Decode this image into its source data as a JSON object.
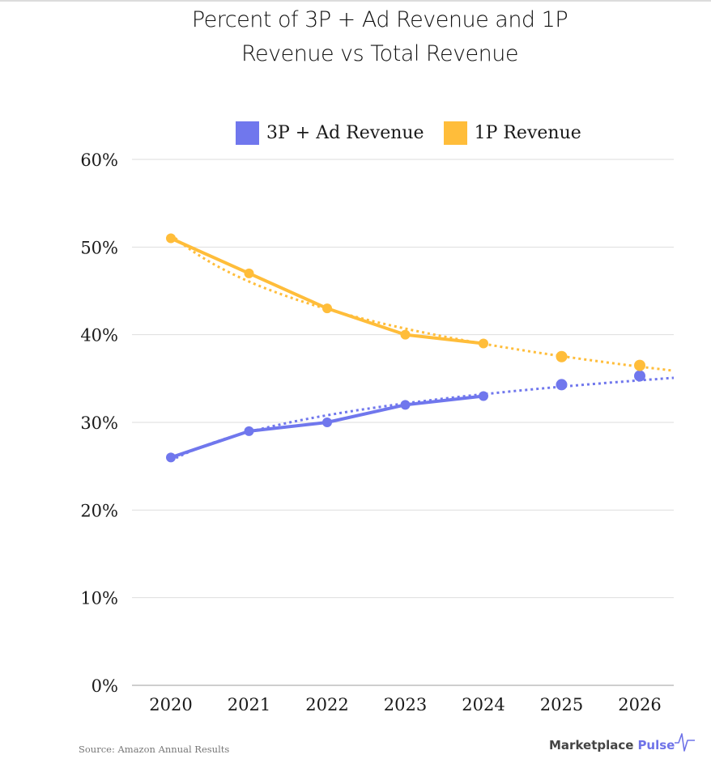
{
  "chart_data": {
    "type": "line",
    "title": "Percent of 3P + Ad Revenue and 1P Revenue vs Total Revenue",
    "title_lines": [
      "Percent of 3P + Ad Revenue and 1P",
      "Revenue vs Total Revenue"
    ],
    "xlabel": "",
    "ylabel": "",
    "categories": [
      "2020",
      "2021",
      "2022",
      "2023",
      "2024",
      "2025",
      "2026"
    ],
    "ylim": [
      0,
      60
    ],
    "y_ticks": [
      0,
      10,
      20,
      30,
      40,
      50,
      60
    ],
    "y_tick_labels": [
      "0%",
      "10%",
      "20%",
      "30%",
      "40%",
      "50%",
      "60%"
    ],
    "grid": true,
    "legend_position": "top-center",
    "series": [
      {
        "name": "3P + Ad Revenue",
        "color": "#7077ed",
        "values": [
          26,
          29,
          30,
          32,
          33,
          34.3,
          35.3
        ],
        "actual_through": "2024",
        "trendline": "dotted"
      },
      {
        "name": "1P Revenue",
        "color": "#ffbd3a",
        "values": [
          51,
          47,
          43,
          40,
          39,
          37.5,
          36.5
        ],
        "actual_through": "2024",
        "trendline": "dotted"
      }
    ]
  },
  "footer": {
    "source": "Source: Amazon Annual Results",
    "brand_left": "Marketplace",
    "brand_right": "Pulse",
    "brand_accent": "#6f73e8"
  }
}
